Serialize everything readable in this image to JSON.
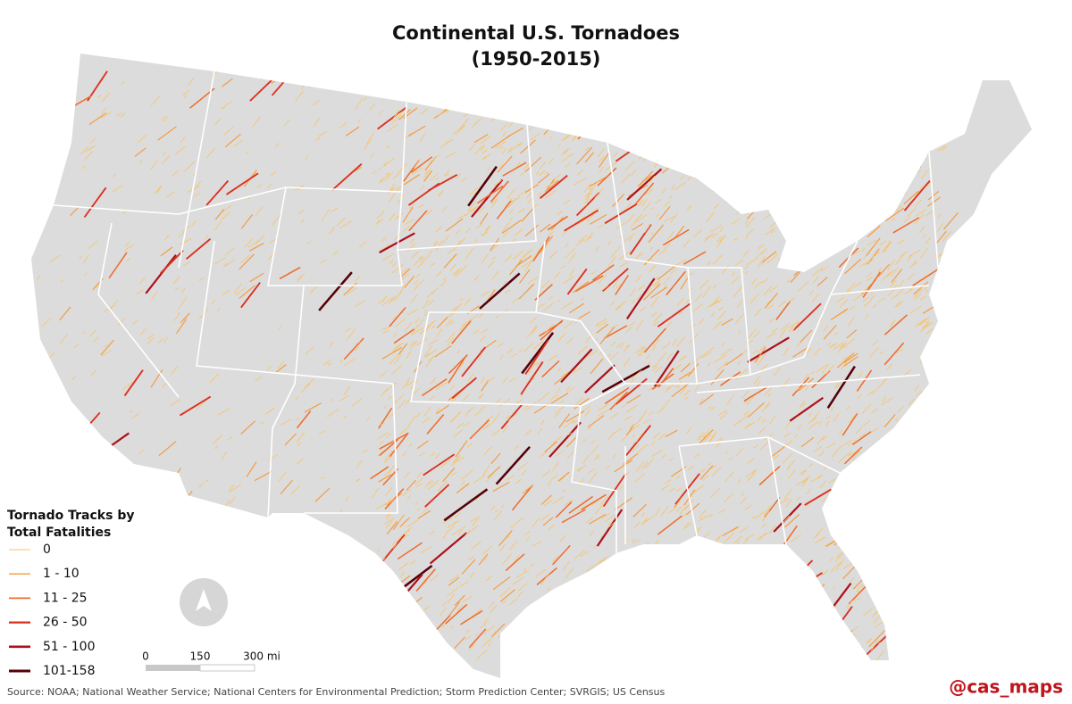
{
  "title": {
    "line1": "Continental U.S. Tornadoes",
    "line2": "(1950-2015)"
  },
  "legend": {
    "title_line1": "Tornado Tracks by",
    "title_line2": "Total Fatalities",
    "items": [
      {
        "label": "0",
        "color": "#f8c365"
      },
      {
        "label": "1 - 10",
        "color": "#f59a3c"
      },
      {
        "label": "11 - 25",
        "color": "#ef6a2a"
      },
      {
        "label": "26 - 50",
        "color": "#dd2f1e"
      },
      {
        "label": "51 - 100",
        "color": "#ad0f1a"
      },
      {
        "label": "101-158",
        "color": "#560008"
      }
    ]
  },
  "scale_bar": {
    "labels": [
      "0",
      "150",
      "300 mi"
    ]
  },
  "source": "Source: NOAA; National Weather Service; National Centers for Environmental Prediction; Storm Prediction Center; SVRGIS; US Census",
  "credit": "@cas_maps"
}
